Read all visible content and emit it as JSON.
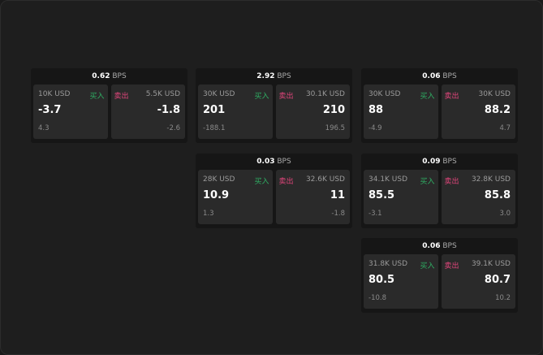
{
  "labels": {
    "unit": "BPS",
    "buy": "买入",
    "sell": "卖出"
  },
  "colors": {
    "buy": "#2fae63",
    "sell": "#e0457b",
    "background": "#1e1e1e"
  },
  "panels": [
    {
      "bps": "0.62",
      "bid": {
        "size": "10K USD",
        "price": "-3.7",
        "delta": "4.3"
      },
      "ask": {
        "size": "5.5K USD",
        "price": "-1.8",
        "delta": "-2.6"
      }
    },
    {
      "bps": "2.92",
      "bid": {
        "size": "30K USD",
        "price": "201",
        "delta": "-188.1"
      },
      "ask": {
        "size": "30.1K USD",
        "price": "210",
        "delta": "196.5"
      }
    },
    {
      "bps": "0.06",
      "bid": {
        "size": "30K USD",
        "price": "88",
        "delta": "-4.9"
      },
      "ask": {
        "size": "30K USD",
        "price": "88.2",
        "delta": "4.7"
      }
    },
    {
      "bps": "0.03",
      "bid": {
        "size": "28K USD",
        "price": "10.9",
        "delta": "1.3"
      },
      "ask": {
        "size": "32.6K USD",
        "price": "11",
        "delta": "-1.8"
      }
    },
    {
      "bps": "0.09",
      "bid": {
        "size": "34.1K USD",
        "price": "85.5",
        "delta": "-3.1"
      },
      "ask": {
        "size": "32.8K USD",
        "price": "85.8",
        "delta": "3.0"
      }
    },
    {
      "bps": "0.06",
      "bid": {
        "size": "31.8K USD",
        "price": "80.5",
        "delta": "-10.8"
      },
      "ask": {
        "size": "39.1K USD",
        "price": "80.7",
        "delta": "10.2"
      }
    }
  ]
}
